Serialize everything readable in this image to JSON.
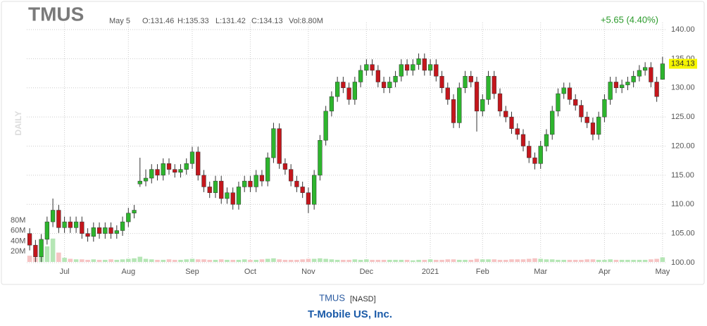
{
  "header": {
    "symbol": "TMUS",
    "date": "May 5",
    "open": "O:131.46",
    "high": "H:135.33",
    "low": "L:131.42",
    "close": "C:134.13",
    "volume": "Vol:8.80M",
    "change": "+5.65 (4.40%)",
    "period": "DAILY"
  },
  "chart_data": {
    "type": "candlestick",
    "categories": [
      null,
      null,
      null,
      null,
      null,
      null,
      "Jul",
      null,
      null,
      null,
      null,
      null,
      null,
      null,
      null,
      null,
      null,
      "Aug",
      null,
      null,
      null,
      null,
      null,
      null,
      null,
      null,
      null,
      null,
      "Sep",
      null,
      null,
      null,
      null,
      null,
      null,
      null,
      null,
      null,
      "Oct",
      null,
      null,
      null,
      null,
      null,
      null,
      null,
      null,
      null,
      "Nov",
      null,
      null,
      null,
      null,
      null,
      null,
      null,
      null,
      null,
      "Dec",
      null,
      null,
      null,
      null,
      null,
      null,
      null,
      null,
      null,
      null,
      "2021",
      null,
      null,
      null,
      null,
      null,
      null,
      null,
      null,
      "Feb",
      null,
      null,
      null,
      null,
      null,
      null,
      null,
      null,
      null,
      "Mar",
      null,
      null,
      null,
      null,
      null,
      null,
      null,
      null,
      null,
      null,
      "Apr",
      null,
      null,
      null,
      null,
      null,
      null,
      null,
      null,
      null,
      "May"
    ],
    "open": [
      105,
      103,
      101,
      104,
      107,
      109,
      106,
      107,
      106,
      107,
      105,
      104.5,
      106,
      105,
      106,
      105,
      105.5,
      107,
      108.5,
      113.5,
      114,
      114.5,
      116,
      115,
      117,
      116,
      115.5,
      116,
      117,
      119,
      115,
      113,
      112,
      114,
      111,
      112,
      110,
      113,
      114,
      113,
      115,
      114,
      118,
      123,
      117,
      116,
      114,
      113,
      112,
      110,
      115,
      121,
      126,
      128.5,
      131,
      130,
      128,
      131,
      133,
      134,
      133,
      131,
      130,
      131,
      132,
      134,
      133,
      134,
      135,
      133,
      134,
      132,
      130,
      128,
      124,
      130,
      132,
      131,
      126,
      128,
      132,
      129,
      126,
      125,
      123,
      122,
      120,
      118,
      117,
      120,
      122,
      126,
      129,
      130,
      128,
      127,
      125,
      124,
      122,
      125,
      128,
      131,
      130,
      130.5,
      131,
      132,
      133,
      133.5,
      131,
      131.46
    ],
    "high": [
      105.9,
      103.9,
      104.9,
      107.9,
      111,
      109.9,
      107.9,
      107.9,
      107.9,
      107.9,
      105.9,
      106.9,
      106.9,
      106.9,
      106.9,
      106.4,
      107.9,
      109.4,
      109.9,
      118,
      116,
      116.9,
      116.9,
      117.9,
      117.9,
      116.9,
      116.9,
      117.9,
      119.9,
      119.9,
      115.9,
      113.9,
      114.9,
      114.9,
      112.9,
      112.9,
      113.9,
      114.9,
      114.9,
      115.9,
      115.9,
      118.9,
      124,
      123.9,
      117.9,
      116.9,
      114.9,
      113.9,
      112.9,
      115.9,
      121.9,
      126.9,
      129.4,
      131.9,
      131.9,
      130.9,
      131.9,
      133.9,
      134.9,
      134.9,
      133.9,
      131.9,
      131.9,
      132.9,
      134.9,
      134.9,
      134.9,
      135.9,
      135.9,
      134.9,
      134.9,
      132.9,
      130.9,
      128.9,
      130.9,
      132.9,
      132.9,
      131.9,
      128.9,
      132.9,
      132.9,
      129.9,
      126.9,
      125.9,
      123.9,
      122.9,
      120.9,
      118.9,
      120.9,
      122.9,
      126.9,
      129.9,
      130.9,
      130.9,
      128.9,
      127.9,
      125.9,
      124.9,
      125.9,
      128.9,
      131.9,
      131.9,
      131.4,
      131.9,
      132.9,
      133.9,
      134.4,
      134.4,
      131.9,
      135.33
    ],
    "low": [
      102.1,
      100.1,
      100.1,
      103.1,
      106.1,
      105.1,
      105.1,
      105.1,
      105.1,
      104.1,
      103.6,
      103.6,
      104.1,
      104.1,
      104.1,
      104.1,
      104.6,
      106.1,
      107.6,
      113,
      113.1,
      113.6,
      114.1,
      114.1,
      115.1,
      114.6,
      114.6,
      115.1,
      116.1,
      114.1,
      112.1,
      111.1,
      111.1,
      110.1,
      110.1,
      109.1,
      109.1,
      112.1,
      112.1,
      112.1,
      113.1,
      113.1,
      117.1,
      116.1,
      115.1,
      113.1,
      112.1,
      111.1,
      108.5,
      109.1,
      114.1,
      120.1,
      125.1,
      127.6,
      129.1,
      127.1,
      127.1,
      130.1,
      132.1,
      132.1,
      130.1,
      129.1,
      129.1,
      130.1,
      131.1,
      132.1,
      132.1,
      133.1,
      132.1,
      132.1,
      131.1,
      129.1,
      127.1,
      123.1,
      123.1,
      129.1,
      130.1,
      122.5,
      125.1,
      127.1,
      128.1,
      125.1,
      124.1,
      122.1,
      121.1,
      119.1,
      117.1,
      116,
      116.1,
      119.1,
      121.1,
      125.1,
      128.1,
      127.1,
      126.1,
      124.1,
      123.1,
      121,
      121.1,
      124.1,
      127.1,
      129.1,
      129.1,
      129.6,
      130.1,
      131.1,
      132.1,
      130.1,
      127.6,
      131.42
    ],
    "close": [
      103,
      101,
      104,
      107,
      109,
      106,
      107,
      106,
      107,
      105,
      104.5,
      106,
      105,
      106,
      105,
      105.5,
      107,
      108.5,
      109,
      114,
      114.5,
      116,
      115,
      117,
      116,
      115.5,
      116,
      117,
      119,
      115,
      113,
      112,
      114,
      111,
      112,
      110,
      113,
      114,
      113,
      115,
      114,
      118,
      123,
      117,
      116,
      114,
      113,
      112,
      110,
      115,
      121,
      126,
      128.5,
      131,
      130,
      128,
      131,
      133,
      134,
      133,
      131,
      130,
      131,
      132,
      134,
      133,
      134,
      135,
      133,
      134,
      132,
      130,
      128,
      124,
      130,
      132,
      131,
      126,
      128,
      132,
      129,
      126,
      125,
      123,
      122,
      120,
      118,
      117,
      120,
      122,
      126,
      129,
      130,
      128,
      127,
      125,
      124,
      122,
      125,
      128,
      131,
      130,
      130.5,
      131,
      132,
      133,
      133.5,
      131,
      128.5,
      134.13
    ],
    "volume": [
      12,
      9,
      10,
      30,
      45,
      18,
      8,
      6,
      5,
      5,
      4,
      5,
      4,
      4,
      5,
      4,
      5,
      6,
      7,
      10,
      6,
      5,
      4,
      4,
      5,
      4,
      4,
      5,
      6,
      5,
      5,
      4,
      4,
      5,
      4,
      4,
      4,
      5,
      4,
      4,
      5,
      6,
      7,
      5,
      4,
      4,
      4,
      5,
      6,
      6,
      7,
      6,
      5,
      4,
      4,
      4,
      5,
      4,
      5,
      4,
      4,
      4,
      4,
      4,
      4,
      4,
      3,
      4,
      4,
      5,
      4,
      4,
      5,
      5,
      4,
      4,
      4,
      6,
      5,
      5,
      5,
      4,
      4,
      5,
      5,
      5,
      6,
      7,
      6,
      5,
      5,
      4,
      4,
      4,
      4,
      4,
      5,
      5,
      4,
      4,
      5,
      4,
      4,
      4,
      4,
      4,
      4,
      5,
      6,
      8.8
    ],
    "ylim": [
      100,
      140
    ],
    "yticks": [
      {
        "value": 100,
        "label": "100.00"
      },
      {
        "value": 105,
        "label": "105.00"
      },
      {
        "value": 110,
        "label": "110.00"
      },
      {
        "value": 115,
        "label": "115.00"
      },
      {
        "value": 120,
        "label": "120.00"
      },
      {
        "value": 125,
        "label": "125.00"
      },
      {
        "value": 130,
        "label": "130.00"
      },
      {
        "value": 135,
        "label": "135.00"
      },
      {
        "value": 140,
        "label": "140.00"
      }
    ],
    "vlim": [
      0,
      80
    ],
    "vticks": [
      {
        "value": 20,
        "label": "20M"
      },
      {
        "value": 40,
        "label": "40M"
      },
      {
        "value": 60,
        "label": "60M"
      },
      {
        "value": 80,
        "label": "80M"
      }
    ],
    "up_color": "#2db52d",
    "down_color": "#c4161c",
    "vol_up_color": "#b5e6b5",
    "vol_down_color": "#f6c3c3",
    "last_color": "#f5f500",
    "grid": true
  },
  "footer": {
    "symbol": "TMUS",
    "exchange": "[NASD]",
    "name": "T-Mobile US, Inc."
  }
}
